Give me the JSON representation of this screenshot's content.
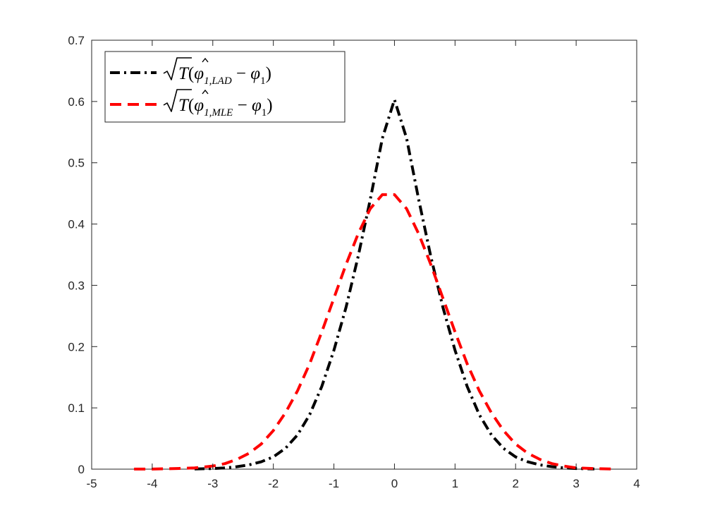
{
  "chart_data": {
    "type": "line",
    "title": "",
    "xlabel": "",
    "ylabel": "",
    "xlim": [
      -5,
      4
    ],
    "ylim": [
      0,
      0.7
    ],
    "xticks": [
      -5,
      -4,
      -3,
      -2,
      -1,
      0,
      1,
      2,
      3,
      4
    ],
    "yticks": [
      0,
      0.1,
      0.2,
      0.3,
      0.4,
      0.5,
      0.6,
      0.7
    ],
    "xtick_labels": [
      "-5",
      "-4",
      "-3",
      "-2",
      "-1",
      "0",
      "1",
      "2",
      "3",
      "4"
    ],
    "ytick_labels": [
      "0",
      "0.1",
      "0.2",
      "0.3",
      "0.4",
      "0.5",
      "0.6",
      "0.7"
    ],
    "grid": false,
    "legend_position": "top-left",
    "series": [
      {
        "name": "√T(φ̂1,LAD − φ1)",
        "legend": {
          "prefix": "T",
          "hat_symbol": "φ",
          "sub": "1,LAD",
          "minus": "−",
          "symbol": "φ",
          "sub2": "1"
        },
        "color": "#000000",
        "style": "dash-dot",
        "x": [
          -3.3,
          -3.0,
          -2.8,
          -2.6,
          -2.4,
          -2.2,
          -2.0,
          -1.8,
          -1.6,
          -1.4,
          -1.2,
          -1.0,
          -0.8,
          -0.6,
          -0.4,
          -0.2,
          0.0,
          0.2,
          0.4,
          0.6,
          0.8,
          1.0,
          1.2,
          1.4,
          1.6,
          1.8,
          2.0,
          2.2,
          2.4,
          2.6,
          2.8,
          3.0,
          3.3
        ],
        "y": [
          0.0003,
          0.001,
          0.002,
          0.004,
          0.007,
          0.012,
          0.02,
          0.034,
          0.056,
          0.089,
          0.135,
          0.194,
          0.264,
          0.347,
          0.44,
          0.54,
          0.603,
          0.54,
          0.44,
          0.347,
          0.264,
          0.194,
          0.135,
          0.089,
          0.056,
          0.034,
          0.02,
          0.012,
          0.007,
          0.004,
          0.002,
          0.001,
          0.0003
        ]
      },
      {
        "name": "√T(φ̂1,MLE − φ1)",
        "legend": {
          "prefix": "T",
          "hat_symbol": "φ",
          "sub": "1,MLE",
          "minus": "−",
          "symbol": "φ",
          "sub2": "1"
        },
        "color": "#ff0000",
        "style": "dashed",
        "x": [
          -4.3,
          -4.0,
          -3.6,
          -3.3,
          -3.0,
          -2.8,
          -2.6,
          -2.4,
          -2.2,
          -2.0,
          -1.8,
          -1.6,
          -1.4,
          -1.2,
          -1.0,
          -0.8,
          -0.6,
          -0.4,
          -0.2,
          0.0,
          0.2,
          0.4,
          0.6,
          0.8,
          1.0,
          1.2,
          1.4,
          1.6,
          1.8,
          2.0,
          2.2,
          2.4,
          2.6,
          2.8,
          3.0,
          3.3,
          3.6
        ],
        "y": [
          0.0001,
          0.0002,
          0.001,
          0.002,
          0.005,
          0.009,
          0.016,
          0.026,
          0.041,
          0.063,
          0.092,
          0.128,
          0.172,
          0.224,
          0.279,
          0.334,
          0.384,
          0.425,
          0.448,
          0.448,
          0.425,
          0.384,
          0.334,
          0.279,
          0.224,
          0.172,
          0.128,
          0.092,
          0.063,
          0.041,
          0.026,
          0.016,
          0.009,
          0.005,
          0.002,
          0.001,
          0.0002
        ]
      }
    ]
  }
}
